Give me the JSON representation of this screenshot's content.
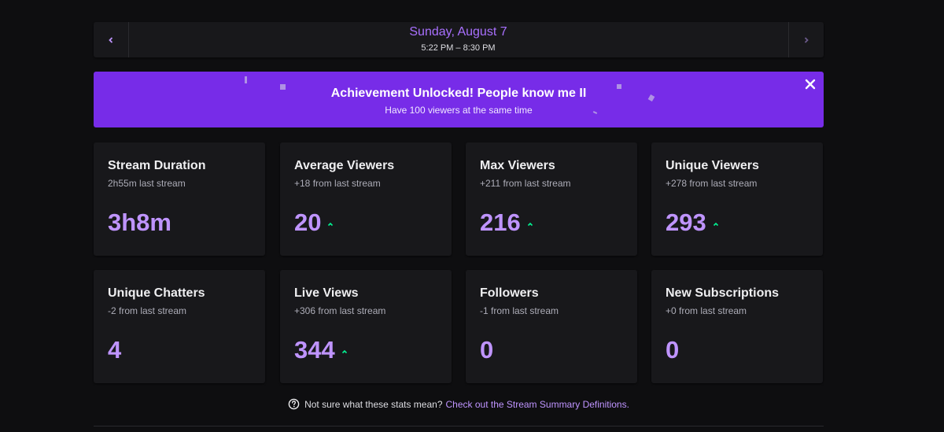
{
  "date_nav": {
    "title": "Sunday, August 7",
    "time_range": "5:22 PM – 8:30 PM",
    "prev_icon": "chevron-left-icon",
    "next_icon": "chevron-right-icon"
  },
  "achievement": {
    "title": "Achievement Unlocked! People know me II",
    "subtitle": "Have 100 viewers at the same time",
    "close_icon": "close-icon",
    "color": "#772ce8"
  },
  "stats": [
    {
      "title": "Stream Duration",
      "delta": "2h55m last stream",
      "value": "3h8m",
      "trend": ""
    },
    {
      "title": "Average Viewers",
      "delta": "+18 from last stream",
      "value": "20",
      "trend": "up"
    },
    {
      "title": "Max Viewers",
      "delta": "+211 from last stream",
      "value": "216",
      "trend": "up"
    },
    {
      "title": "Unique Viewers",
      "delta": "+278 from last stream",
      "value": "293",
      "trend": "up"
    },
    {
      "title": "Unique Chatters",
      "delta": "-2 from last stream",
      "value": "4",
      "trend": ""
    },
    {
      "title": "Live Views",
      "delta": "+306 from last stream",
      "value": "344",
      "trend": "up"
    },
    {
      "title": "Followers",
      "delta": "-1 from last stream",
      "value": "0",
      "trend": ""
    },
    {
      "title": "New Subscriptions",
      "delta": "+0 from last stream",
      "value": "0",
      "trend": ""
    }
  ],
  "footer": {
    "text": "Not sure what these stats mean?",
    "link": "Check out the Stream Summary Definitions.",
    "icon": "help-circle-icon"
  },
  "colors": {
    "accent": "#bf94ff",
    "up_trend": "#00f593",
    "background": "#0e0e10",
    "card": "#18181b"
  }
}
